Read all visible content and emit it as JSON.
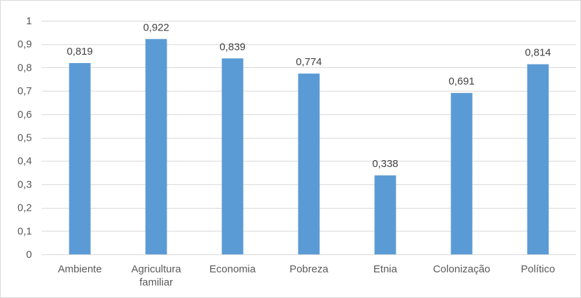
{
  "chart_data": {
    "type": "bar",
    "categories": [
      [
        "Ambiente"
      ],
      [
        "Agricultura",
        "familiar"
      ],
      [
        "Economia"
      ],
      [
        "Pobreza"
      ],
      [
        "Etnia"
      ],
      [
        "Colonização"
      ],
      [
        "Político"
      ]
    ],
    "values": [
      0.819,
      0.922,
      0.839,
      0.774,
      0.338,
      0.691,
      0.814
    ],
    "value_labels": [
      "0,819",
      "0,922",
      "0,839",
      "0,774",
      "0,338",
      "0,691",
      "0,814"
    ],
    "y_ticks": [
      0,
      0.1,
      0.2,
      0.3,
      0.4,
      0.5,
      0.6,
      0.7,
      0.8,
      0.9,
      1
    ],
    "y_tick_labels": [
      "0",
      "0,1",
      "0,2",
      "0,3",
      "0,4",
      "0,5",
      "0,6",
      "0,7",
      "0,8",
      "0,9",
      "1"
    ],
    "ylim": [
      0,
      1
    ],
    "grid": true,
    "title": "",
    "xlabel": "",
    "ylabel": "",
    "bar_color": "#5b9bd5"
  }
}
